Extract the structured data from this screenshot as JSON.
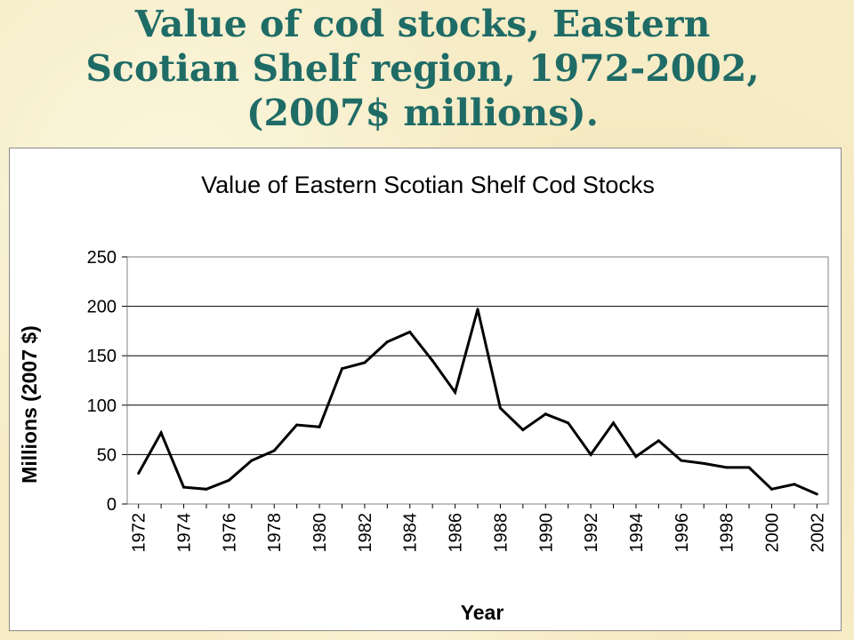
{
  "slide": {
    "title": "Value of cod stocks, Eastern Scotian Shelf region, 1972-2002, (2007$ millions)."
  },
  "chart_data": {
    "type": "line",
    "title": "Value of Eastern Scotian Shelf Cod Stocks",
    "xlabel": "Year",
    "ylabel": "Millions (2007 $)",
    "ylim": [
      0,
      250
    ],
    "yticks": [
      0,
      50,
      100,
      150,
      200,
      250
    ],
    "xticks": [
      "1972",
      "1974",
      "1976",
      "1978",
      "1980",
      "1982",
      "1984",
      "1986",
      "1988",
      "1990",
      "1992",
      "1994",
      "1996",
      "1998",
      "2000",
      "2002"
    ],
    "grid": "horizontal",
    "legend": "none",
    "line_color": "#000000",
    "series": [
      {
        "x": [
          1972,
          1973,
          1974,
          1975,
          1976,
          1977,
          1978,
          1979,
          1980,
          1981,
          1982,
          1983,
          1984,
          1985,
          1986,
          1987,
          1988,
          1989,
          1990,
          1991,
          1992,
          1993,
          1994,
          1995,
          1996,
          1997,
          1998,
          1999,
          2000,
          2001,
          2002
        ],
        "values": [
          31,
          72,
          17,
          15,
          24,
          44,
          54,
          80,
          78,
          137,
          143,
          164,
          174,
          145,
          113,
          197,
          97,
          75,
          91,
          82,
          50,
          82,
          48,
          64,
          44,
          41,
          37,
          37,
          15,
          20,
          10
        ]
      }
    ]
  }
}
